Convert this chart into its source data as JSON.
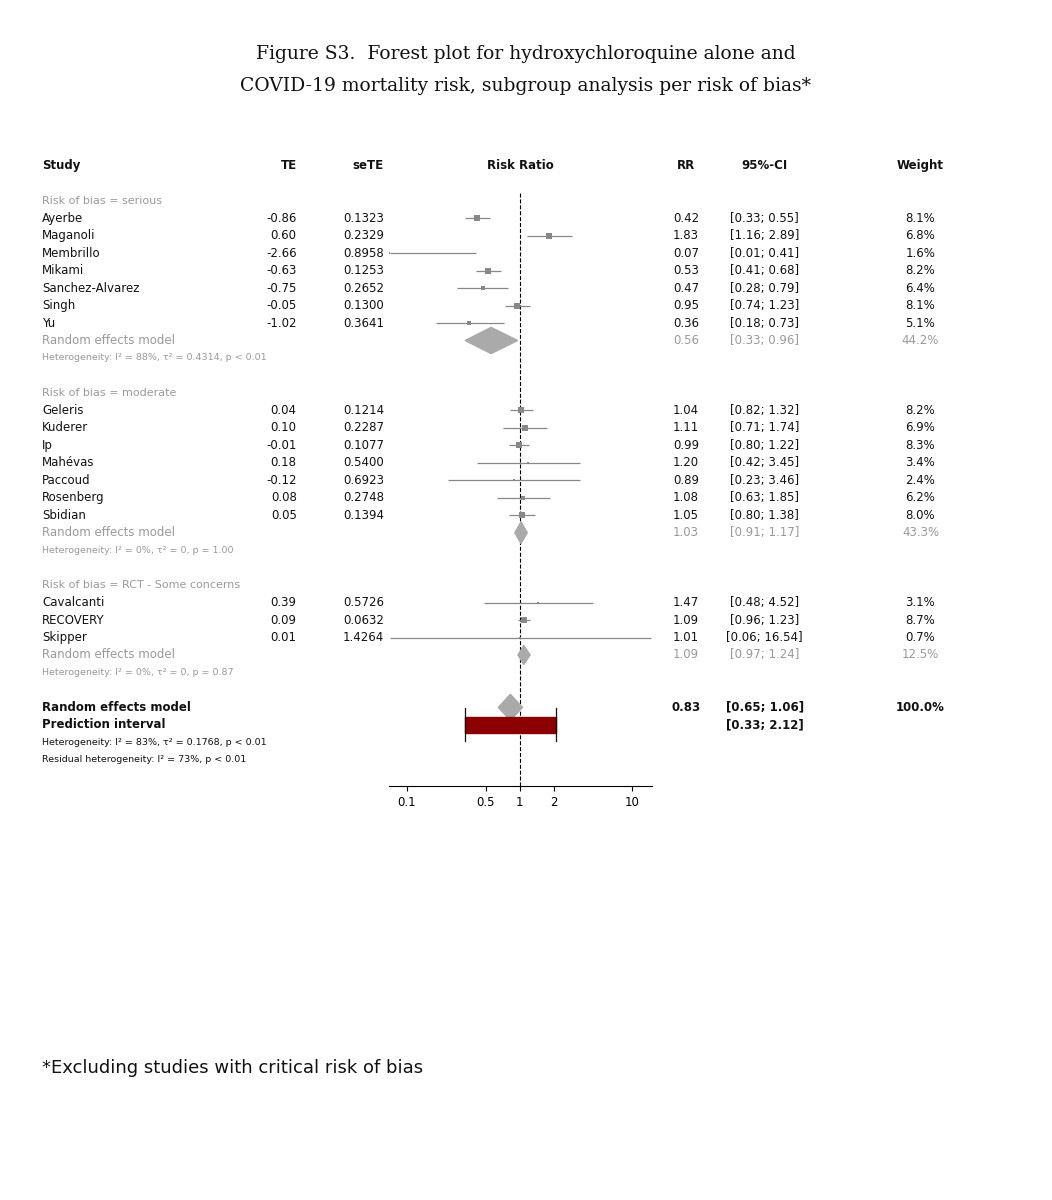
{
  "title_line1": "Figure S3.  Forest plot for hydroxychloroquine alone and",
  "title_line2": "COVID-19 mortality risk, subgroup analysis per risk of bias*",
  "footnote": "*Excluding studies with critical risk of bias",
  "groups": [
    {
      "header": "Risk of bias = serious",
      "studies": [
        {
          "name": "Ayerbe",
          "te": "-0.86",
          "sete": "0.1323",
          "rr": 0.42,
          "ci_lo": 0.33,
          "ci_hi": 0.55,
          "weight": "8.1%"
        },
        {
          "name": "Maganoli",
          "te": "0.60",
          "sete": "0.2329",
          "rr": 1.83,
          "ci_lo": 1.16,
          "ci_hi": 2.89,
          "weight": "6.8%"
        },
        {
          "name": "Membrillo",
          "te": "-2.66",
          "sete": "0.8958",
          "rr": 0.07,
          "ci_lo": 0.01,
          "ci_hi": 0.41,
          "weight": "1.6%"
        },
        {
          "name": "Mikami",
          "te": "-0.63",
          "sete": "0.1253",
          "rr": 0.53,
          "ci_lo": 0.41,
          "ci_hi": 0.68,
          "weight": "8.2%"
        },
        {
          "name": "Sanchez-Alvarez",
          "te": "-0.75",
          "sete": "0.2652",
          "rr": 0.47,
          "ci_lo": 0.28,
          "ci_hi": 0.79,
          "weight": "6.4%"
        },
        {
          "name": "Singh",
          "te": "-0.05",
          "sete": "0.1300",
          "rr": 0.95,
          "ci_lo": 0.74,
          "ci_hi": 1.23,
          "weight": "8.1%"
        },
        {
          "name": "Yu",
          "te": "-1.02",
          "sete": "0.3641",
          "rr": 0.36,
          "ci_lo": 0.18,
          "ci_hi": 0.73,
          "weight": "5.1%"
        }
      ],
      "random_rr": 0.56,
      "random_ci_lo": 0.33,
      "random_ci_hi": 0.96,
      "random_weight": "44.2%",
      "het_text": "Heterogeneity: I² = 88%, τ² = 0.4314, p < 0.01"
    },
    {
      "header": "Risk of bias = moderate",
      "studies": [
        {
          "name": "Geleris",
          "te": "0.04",
          "sete": "0.1214",
          "rr": 1.04,
          "ci_lo": 0.82,
          "ci_hi": 1.32,
          "weight": "8.2%"
        },
        {
          "name": "Kuderer",
          "te": "0.10",
          "sete": "0.2287",
          "rr": 1.11,
          "ci_lo": 0.71,
          "ci_hi": 1.74,
          "weight": "6.9%"
        },
        {
          "name": "Ip",
          "te": "-0.01",
          "sete": "0.1077",
          "rr": 0.99,
          "ci_lo": 0.8,
          "ci_hi": 1.22,
          "weight": "8.3%"
        },
        {
          "name": "Mahévas",
          "te": "0.18",
          "sete": "0.5400",
          "rr": 1.2,
          "ci_lo": 0.42,
          "ci_hi": 3.45,
          "weight": "3.4%"
        },
        {
          "name": "Paccoud",
          "te": "-0.12",
          "sete": "0.6923",
          "rr": 0.89,
          "ci_lo": 0.23,
          "ci_hi": 3.46,
          "weight": "2.4%"
        },
        {
          "name": "Rosenberg",
          "te": "0.08",
          "sete": "0.2748",
          "rr": 1.08,
          "ci_lo": 0.63,
          "ci_hi": 1.85,
          "weight": "6.2%"
        },
        {
          "name": "Sbidian",
          "te": "0.05",
          "sete": "0.1394",
          "rr": 1.05,
          "ci_lo": 0.8,
          "ci_hi": 1.38,
          "weight": "8.0%"
        }
      ],
      "random_rr": 1.03,
      "random_ci_lo": 0.91,
      "random_ci_hi": 1.17,
      "random_weight": "43.3%",
      "het_text": "Heterogeneity: I² = 0%, τ² = 0, p = 1.00"
    },
    {
      "header": "Risk of bias = RCT - Some concerns",
      "studies": [
        {
          "name": "Cavalcanti",
          "te": "0.39",
          "sete": "0.5726",
          "rr": 1.47,
          "ci_lo": 0.48,
          "ci_hi": 4.52,
          "weight": "3.1%"
        },
        {
          "name": "RECOVERY",
          "te": "0.09",
          "sete": "0.0632",
          "rr": 1.09,
          "ci_lo": 0.96,
          "ci_hi": 1.23,
          "weight": "8.7%"
        },
        {
          "name": "Skipper",
          "te": "0.01",
          "sete": "1.4264",
          "rr": 1.01,
          "ci_lo": 0.06,
          "ci_hi": 16.54,
          "weight": "0.7%"
        }
      ],
      "random_rr": 1.09,
      "random_ci_lo": 0.97,
      "random_ci_hi": 1.24,
      "random_weight": "12.5%",
      "het_text": "Heterogeneity: I² = 0%, τ² = 0, p = 0.87"
    }
  ],
  "overall_rr": 0.83,
  "overall_ci_lo": 0.65,
  "overall_ci_hi": 1.06,
  "overall_weight": "100.0%",
  "overall_pred_lo": 0.33,
  "overall_pred_hi": 2.12,
  "overall_het": "Heterogeneity: I² = 83%, τ² = 0.1768, p < 0.01",
  "overall_res_het": "Residual heterogeneity: I² = 73%, p < 0.01",
  "xmin": 0.07,
  "xmax": 15.0,
  "xaxis_ticks": [
    0.1,
    0.5,
    1,
    2,
    10
  ],
  "xaxis_labels": [
    "0.1",
    "0.5",
    "1",
    "2",
    "10"
  ],
  "gray": "#999999",
  "black": "#111111",
  "marker_color": "#888888",
  "diamond_color": "#aaaaaa",
  "pred_bar_color": "#8B0000"
}
